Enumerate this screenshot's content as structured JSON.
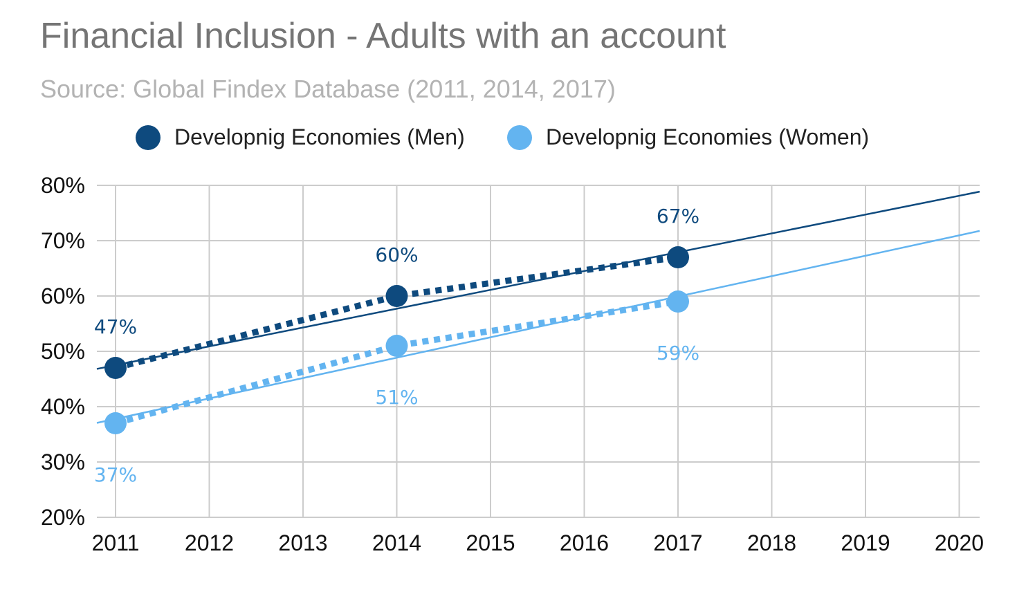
{
  "header": {
    "title": "Financial Inclusion - Adults with an account",
    "subtitle": "Source: Global Findex Database (2011, 2014, 2017)"
  },
  "colors": {
    "men": "#0e4a7e",
    "women": "#63b4f0",
    "grid": "#cccccc"
  },
  "chart_data": {
    "type": "line",
    "title": "Financial Inclusion - Adults with an account",
    "subtitle": "Source: Global Findex Database (2011, 2014, 2017)",
    "x_ticks": [
      2011,
      2012,
      2013,
      2014,
      2015,
      2016,
      2017,
      2018,
      2019,
      2020
    ],
    "y_ticks": [
      "20%",
      "30%",
      "40%",
      "50%",
      "60%",
      "70%",
      "80%"
    ],
    "ylim": [
      20,
      80
    ],
    "xlim": [
      2011,
      2020
    ],
    "grid": true,
    "legend_position": "top",
    "series": [
      {
        "name": "Developnig Economies (Men)",
        "x": [
          2011,
          2014,
          2017
        ],
        "values": [
          47,
          60,
          67
        ],
        "labels": [
          "47%",
          "60%",
          "67%"
        ],
        "trendline": {
          "from": [
            2011,
            47.5
          ],
          "to": [
            2020.2,
            78.8
          ]
        }
      },
      {
        "name": "Developnig Economies (Women)",
        "x": [
          2011,
          2014,
          2017
        ],
        "values": [
          37,
          51,
          59
        ],
        "labels": [
          "37%",
          "51%",
          "59%"
        ],
        "trendline": {
          "from": [
            2011,
            37.8
          ],
          "to": [
            2020.2,
            71.7
          ]
        }
      }
    ]
  }
}
